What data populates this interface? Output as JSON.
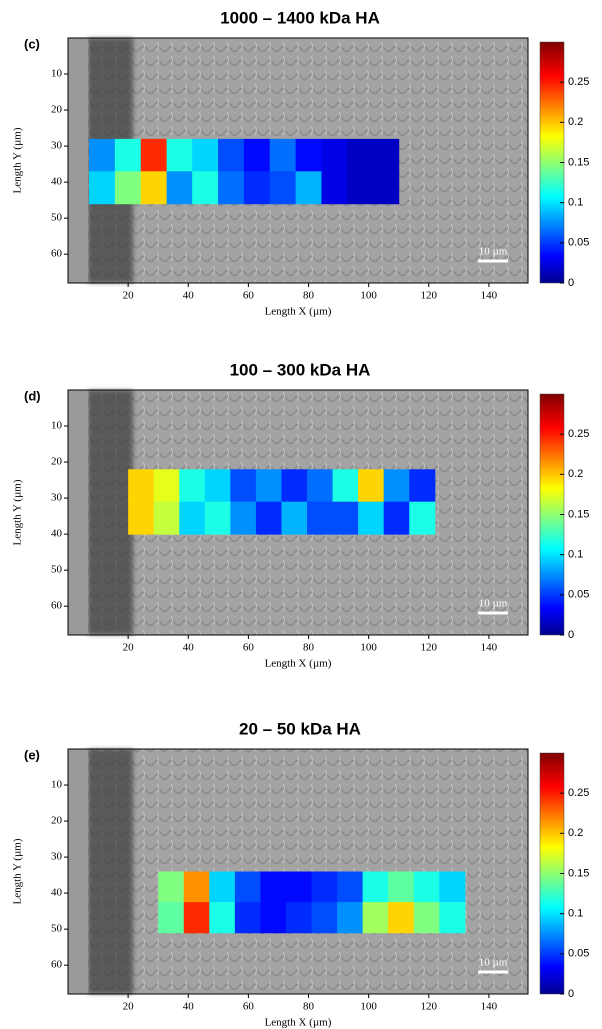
{
  "chart_data": [
    {
      "type": "heatmap",
      "title": "1000 – 1400 kDa HA",
      "panel_label": "(c)",
      "xlabel": "Length X (µm)",
      "ylabel": "Length Y (µm)",
      "xlim": [
        0,
        153
      ],
      "ylim": [
        0,
        68
      ],
      "xticks": [
        20,
        40,
        60,
        80,
        100,
        120,
        140
      ],
      "yticks": [
        10,
        20,
        30,
        40,
        50,
        60
      ],
      "xbins": [
        7,
        15.6,
        24.2,
        32.8,
        41.3,
        49.9,
        58.5,
        67.1,
        75.7,
        84.3,
        92.8,
        101.4,
        110
      ],
      "ybins": [
        28,
        37,
        46
      ],
      "values": [
        [
          0.08,
          0.12,
          0.25,
          0.12,
          0.1,
          0.06,
          0.04,
          0.07,
          0.04,
          0.03,
          0.02,
          0.02
        ],
        [
          0.1,
          0.15,
          0.2,
          0.08,
          0.12,
          0.07,
          0.05,
          0.06,
          0.09,
          0.03,
          0.02,
          0.02
        ]
      ],
      "colormap": "jet",
      "clim": [
        0,
        0.3
      ],
      "cticks": [
        0,
        0.05,
        0.1,
        0.15,
        0.2,
        0.25
      ],
      "scale_bar": {
        "value": 10,
        "label": "10 µm"
      }
    },
    {
      "type": "heatmap",
      "title": "100 – 300 kDa HA",
      "panel_label": "(d)",
      "xlabel": "Length X (µm)",
      "ylabel": "Length Y (µm)",
      "xlim": [
        0,
        153
      ],
      "ylim": [
        0,
        68
      ],
      "xticks": [
        20,
        40,
        60,
        80,
        100,
        120,
        140
      ],
      "yticks": [
        10,
        20,
        30,
        40,
        50,
        60
      ],
      "xbins": [
        20,
        28.5,
        37,
        45.5,
        54,
        62.5,
        71,
        79.5,
        88,
        96.5,
        105,
        113.5,
        122
      ],
      "ybins": [
        22,
        31,
        40
      ],
      "values": [
        [
          0.2,
          0.18,
          0.12,
          0.1,
          0.06,
          0.08,
          0.05,
          0.07,
          0.12,
          0.2,
          0.08,
          0.05
        ],
        [
          0.2,
          0.17,
          0.1,
          0.12,
          0.08,
          0.05,
          0.09,
          0.06,
          0.06,
          0.1,
          0.05,
          0.12
        ]
      ],
      "colormap": "jet",
      "clim": [
        0,
        0.3
      ],
      "cticks": [
        0,
        0.05,
        0.1,
        0.15,
        0.2,
        0.25
      ],
      "scale_bar": {
        "value": 10,
        "label": "10 µm"
      }
    },
    {
      "type": "heatmap",
      "title": "20 – 50 kDa HA",
      "panel_label": "(e)",
      "xlabel": "Length X (µm)",
      "ylabel": "Length Y (µm)",
      "xlim": [
        0,
        153
      ],
      "ylim": [
        0,
        68
      ],
      "xticks": [
        20,
        40,
        60,
        80,
        100,
        120,
        140
      ],
      "yticks": [
        10,
        20,
        30,
        40,
        50,
        60
      ],
      "xbins": [
        30,
        38.5,
        47,
        55.5,
        64,
        72.5,
        81,
        89.5,
        98,
        106.5,
        115,
        123.5,
        132
      ],
      "ybins": [
        34,
        42.5,
        51
      ],
      "values": [
        [
          0.15,
          0.22,
          0.1,
          0.06,
          0.04,
          0.04,
          0.05,
          0.06,
          0.12,
          0.14,
          0.12,
          0.1
        ],
        [
          0.14,
          0.25,
          0.12,
          0.05,
          0.04,
          0.05,
          0.06,
          0.08,
          0.16,
          0.2,
          0.15,
          0.12
        ]
      ],
      "colormap": "jet",
      "clim": [
        0,
        0.3
      ],
      "cticks": [
        0,
        0.05,
        0.1,
        0.15,
        0.2,
        0.25
      ],
      "scale_bar": {
        "value": 10,
        "label": "10 µm"
      }
    }
  ]
}
